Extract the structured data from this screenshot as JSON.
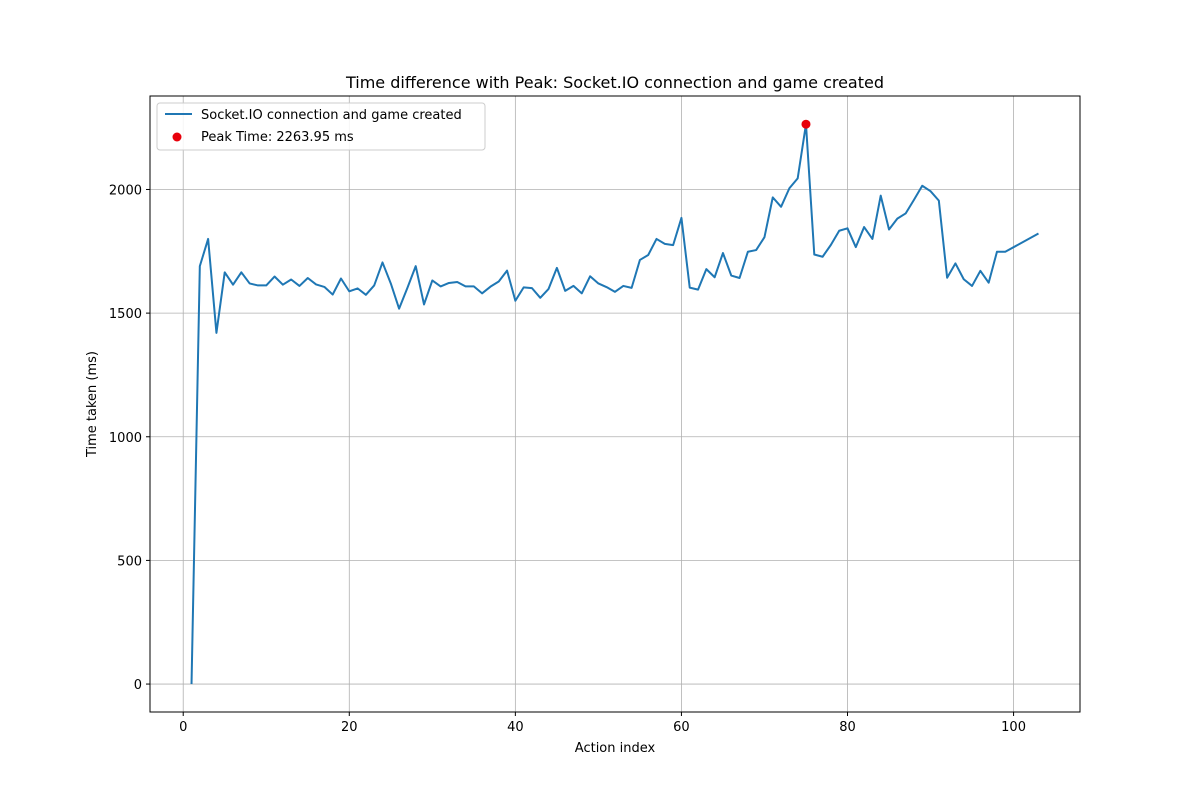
{
  "chart_data": {
    "type": "line",
    "title": "Time difference with Peak: Socket.IO connection and game created",
    "xlabel": "Action index",
    "ylabel": "Time taken (ms)",
    "xlim": [
      -4,
      108
    ],
    "ylim": [
      -113,
      2378
    ],
    "xticks": [
      0,
      20,
      40,
      60,
      80,
      100
    ],
    "yticks": [
      0,
      500,
      1000,
      1500,
      2000
    ],
    "grid": true,
    "legend_position": "top-left",
    "series": [
      {
        "name": "Socket.IO connection and game created",
        "color": "#1f77b4",
        "x": [
          1,
          2,
          3,
          4,
          5,
          6,
          7,
          8,
          9,
          10,
          11,
          12,
          13,
          14,
          15,
          16,
          17,
          18,
          19,
          20,
          21,
          22,
          23,
          24,
          25,
          26,
          27,
          28,
          29,
          30,
          31,
          32,
          33,
          34,
          35,
          36,
          37,
          38,
          39,
          40,
          41,
          42,
          43,
          44,
          45,
          46,
          47,
          48,
          49,
          50,
          51,
          52,
          53,
          54,
          55,
          56,
          57,
          58,
          59,
          60,
          61,
          62,
          63,
          64,
          65,
          66,
          67,
          68,
          69,
          70,
          71,
          72,
          73,
          74,
          75,
          76,
          77,
          78,
          79,
          80,
          81,
          82,
          83,
          84,
          85,
          86,
          87,
          88,
          89,
          90,
          91,
          92,
          93,
          94,
          95,
          96,
          97,
          98,
          99,
          103
        ],
        "y": [
          0,
          1690,
          1800,
          1420,
          1665,
          1615,
          1665,
          1620,
          1612,
          1612,
          1648,
          1615,
          1636,
          1610,
          1642,
          1616,
          1606,
          1575,
          1640,
          1588,
          1600,
          1574,
          1612,
          1705,
          1620,
          1518,
          1602,
          1690,
          1535,
          1632,
          1608,
          1622,
          1626,
          1608,
          1608,
          1580,
          1607,
          1628,
          1672,
          1550,
          1604,
          1601,
          1562,
          1598,
          1683,
          1590,
          1610,
          1580,
          1649,
          1620,
          1605,
          1586,
          1610,
          1602,
          1715,
          1735,
          1800,
          1780,
          1775,
          1885,
          1603,
          1595,
          1678,
          1645,
          1743,
          1652,
          1642,
          1748,
          1755,
          1807,
          1968,
          1930,
          2005,
          2045,
          2264,
          1737,
          1728,
          1776,
          1833,
          1843,
          1767,
          1848,
          1800,
          1975,
          1838,
          1882,
          1903,
          1958,
          2015,
          1993,
          1955,
          1643,
          1701,
          1637,
          1610,
          1671,
          1623,
          1748,
          1748,
          1822
        ]
      }
    ],
    "peak": {
      "label": "Peak Time: 2263.95 ms",
      "x": 75,
      "y": 2263.95,
      "color": "#e8000b"
    }
  }
}
